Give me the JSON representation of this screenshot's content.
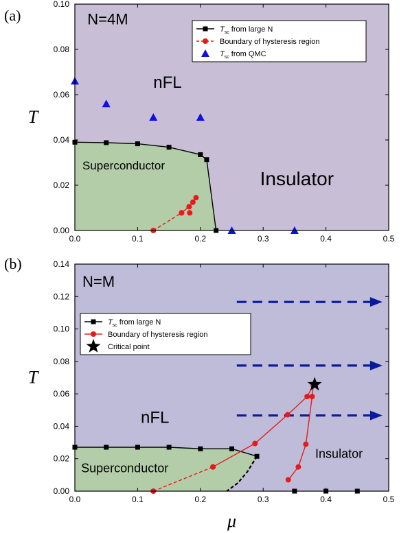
{
  "chart_data": [
    {
      "type": "scatter",
      "panel_label": "(a)",
      "xlim": [
        0,
        0.5
      ],
      "ylim": [
        0,
        0.1
      ],
      "xticks": [
        "0.0",
        "0.1",
        "0.2",
        "0.3",
        "0.4",
        "0.5"
      ],
      "yticks": [
        "0.00",
        "0.02",
        "0.04",
        "0.06",
        "0.08",
        "0.10"
      ],
      "xlabel": "",
      "ylabel": "T",
      "background_color": "#c8bed6",
      "sc_region_color": "#b3cda9",
      "annotations": [
        {
          "text": "N=4M",
          "x": 0.02,
          "y": 0.091,
          "size": 22
        },
        {
          "text": "nFL",
          "x": 0.125,
          "y": 0.063,
          "size": 24
        },
        {
          "text": "Superconductor",
          "x": 0.012,
          "y": 0.027,
          "size": 17
        },
        {
          "text": "Insulator",
          "x": 0.295,
          "y": 0.02,
          "size": 28
        }
      ],
      "legend": {
        "position": "top-right",
        "items": [
          {
            "label": "T",
            "sub": "sc",
            "suffix": " from large N",
            "kind": "line-square",
            "color": "#000000"
          },
          {
            "label": "Boundary of hysteresis region",
            "sub": "",
            "suffix": "",
            "kind": "dash-circle",
            "color": "#e51a1a"
          },
          {
            "label": "T",
            "sub": "sc",
            "suffix": " from QMC",
            "kind": "triangle",
            "color": "#1010e0"
          }
        ]
      },
      "series": [
        {
          "name": "T_sc from large N",
          "kind": "line-square",
          "color": "#000000",
          "points": [
            [
              0.0,
              0.039
            ],
            [
              0.05,
              0.0388
            ],
            [
              0.1,
              0.0383
            ],
            [
              0.15,
              0.0368
            ],
            [
              0.2,
              0.0335
            ],
            [
              0.21,
              0.0313
            ],
            [
              0.225,
              0.0
            ]
          ]
        },
        {
          "name": "Boundary of hysteresis region (dashed)",
          "kind": "dash-circle",
          "color": "#e51a1a",
          "points": [
            [
              0.125,
              0.0
            ],
            [
              0.17,
              0.0078
            ]
          ]
        },
        {
          "name": "Boundary of hysteresis region (solid)",
          "kind": "solid-circle",
          "color": "#e51a1a",
          "points": [
            [
              0.17,
              0.0078
            ],
            [
              0.182,
              0.0105
            ],
            [
              0.188,
              0.0125
            ],
            [
              0.193,
              0.0145
            ]
          ]
        },
        {
          "name": "Boundary of hysteresis region (lower point)",
          "kind": "circle-only",
          "color": "#e51a1a",
          "points": [
            [
              0.183,
              0.0078
            ]
          ]
        },
        {
          "name": "T_sc from QMC",
          "kind": "triangle",
          "color": "#1010e0",
          "points": [
            [
              0.0,
              0.066
            ],
            [
              0.05,
              0.056
            ],
            [
              0.125,
              0.05
            ],
            [
              0.2,
              0.05
            ],
            [
              0.25,
              0.0
            ],
            [
              0.35,
              0.0
            ]
          ]
        }
      ],
      "sc_region": [
        [
          0.0,
          0.0
        ],
        [
          0.0,
          0.039
        ],
        [
          0.05,
          0.0388
        ],
        [
          0.1,
          0.0383
        ],
        [
          0.15,
          0.0368
        ],
        [
          0.2,
          0.0335
        ],
        [
          0.21,
          0.0313
        ],
        [
          0.225,
          0.0
        ]
      ]
    },
    {
      "type": "scatter",
      "panel_label": "(b)",
      "xlim": [
        0,
        0.5
      ],
      "ylim": [
        0,
        0.15
      ],
      "xticks": [
        "0.0",
        "0.1",
        "0.2",
        "0.3",
        "0.4",
        "0.5"
      ],
      "yticks": [
        "0.00",
        "0.02",
        "0.04",
        "0.06",
        "0.08",
        "0.10",
        "0.12",
        "0.14"
      ],
      "xlabel": "μ",
      "ylabel": "T",
      "background_color": "#bebcd8",
      "sc_region_color": "#b3cda9",
      "annotations": [
        {
          "text": "N=M",
          "x": 0.012,
          "y": 0.135,
          "size": 22
        },
        {
          "text": "nFL",
          "x": 0.105,
          "y": 0.045,
          "size": 24
        },
        {
          "text": "Superconductor",
          "x": 0.01,
          "y": 0.0125,
          "size": 18
        },
        {
          "text": "Insulator",
          "x": 0.383,
          "y": 0.022,
          "size": 18
        }
      ],
      "legend": {
        "position": "top-left",
        "items": [
          {
            "label": "T",
            "sub": "sc",
            "suffix": " from large N",
            "kind": "line-square",
            "color": "#000000"
          },
          {
            "label": "Boundary of hysteresis region",
            "sub": "",
            "suffix": "",
            "kind": "solid-circle",
            "color": "#e51a1a"
          },
          {
            "label": "Critical point",
            "sub": "",
            "suffix": "",
            "kind": "star",
            "color": "#000000"
          }
        ]
      },
      "arrows": [
        {
          "x0": 0.258,
          "x1": 0.49,
          "y": 0.125
        },
        {
          "x0": 0.258,
          "x1": 0.49,
          "y": 0.083
        },
        {
          "x0": 0.258,
          "x1": 0.49,
          "y": 0.05
        }
      ],
      "arrow_color": "#0a1a9e",
      "series": [
        {
          "name": "T_sc from large N",
          "kind": "line-square",
          "color": "#000000",
          "points": [
            [
              0.0,
              0.029
            ],
            [
              0.05,
              0.029
            ],
            [
              0.1,
              0.029
            ],
            [
              0.15,
              0.029
            ],
            [
              0.2,
              0.028
            ],
            [
              0.25,
              0.028
            ],
            [
              0.29,
              0.023
            ]
          ]
        },
        {
          "name": "T_sc from large N (dashed to zero)",
          "kind": "dash-black",
          "color": "#000000",
          "points": [
            [
              0.29,
              0.023
            ],
            [
              0.275,
              0.013
            ],
            [
              0.26,
              0.0055
            ],
            [
              0.242,
              0.0
            ]
          ]
        },
        {
          "name": "T_sc from large N (insulator)",
          "kind": "square-only",
          "color": "#000000",
          "points": [
            [
              0.35,
              0.0
            ],
            [
              0.4,
              0.0
            ],
            [
              0.45,
              0.0
            ]
          ]
        },
        {
          "name": "Boundary of hysteresis region (dashed)",
          "kind": "dash-circle",
          "color": "#e51a1a",
          "points": [
            [
              0.125,
              0.0
            ],
            [
              0.22,
              0.016
            ]
          ]
        },
        {
          "name": "Boundary of hysteresis region (left)",
          "kind": "solid-circle",
          "color": "#e51a1a",
          "points": [
            [
              0.22,
              0.016
            ],
            [
              0.287,
              0.0315
            ],
            [
              0.339,
              0.0505
            ],
            [
              0.37,
              0.0625
            ],
            [
              0.38,
              0.07
            ]
          ]
        },
        {
          "name": "Boundary of hysteresis region (right)",
          "kind": "solid-circle",
          "color": "#e51a1a",
          "points": [
            [
              0.38,
              0.07
            ],
            [
              0.378,
              0.0625
            ],
            [
              0.368,
              0.031
            ],
            [
              0.356,
              0.016
            ],
            [
              0.34,
              0.0075
            ]
          ]
        },
        {
          "name": "Critical point",
          "kind": "star",
          "color": "#000000",
          "points": [
            [
              0.382,
              0.0705
            ]
          ]
        }
      ],
      "sc_region": [
        [
          0.0,
          0.0
        ],
        [
          0.0,
          0.029
        ],
        [
          0.05,
          0.029
        ],
        [
          0.1,
          0.029
        ],
        [
          0.15,
          0.029
        ],
        [
          0.2,
          0.028
        ],
        [
          0.25,
          0.028
        ],
        [
          0.29,
          0.023
        ],
        [
          0.275,
          0.013
        ],
        [
          0.26,
          0.0055
        ],
        [
          0.242,
          0.0
        ]
      ]
    }
  ]
}
